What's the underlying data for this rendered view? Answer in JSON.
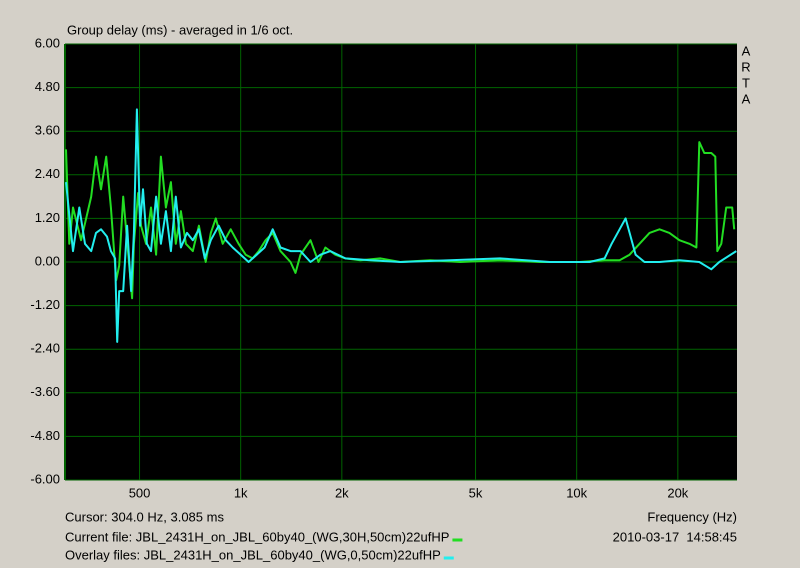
{
  "chart_data": {
    "type": "line",
    "title": "Group delay (ms) - averaged in 1/6 oct.",
    "branding": [
      "A",
      "R",
      "T",
      "A"
    ],
    "xscale": "log",
    "grid": true,
    "grid_color": "#006400",
    "background": "#000000",
    "xlim": [
      300,
      30000
    ],
    "ylim": [
      -6,
      6
    ],
    "xticks": [
      {
        "value": 500,
        "label": "500"
      },
      {
        "value": 1000,
        "label": "1k"
      },
      {
        "value": 2000,
        "label": "2k"
      },
      {
        "value": 5000,
        "label": "5k"
      },
      {
        "value": 10000,
        "label": "10k"
      },
      {
        "value": 20000,
        "label": "20k"
      }
    ],
    "yticks": [
      {
        "value": 6,
        "label": "6.00"
      },
      {
        "value": 4.8,
        "label": "4.80"
      },
      {
        "value": 3.6,
        "label": "3.60"
      },
      {
        "value": 2.4,
        "label": "2.40"
      },
      {
        "value": 1.2,
        "label": "1.20"
      },
      {
        "value": 0,
        "label": "0.00"
      },
      {
        "value": -1.2,
        "label": "-1.20"
      },
      {
        "value": -2.4,
        "label": "-2.40"
      },
      {
        "value": -3.6,
        "label": "-3.60"
      },
      {
        "value": -4.8,
        "label": "-4.80"
      },
      {
        "value": -6,
        "label": "-6.00"
      }
    ],
    "xlabel": "Frequency (Hz)",
    "cursor_readout": "Cursor: 304.0 Hz, 3.085 ms",
    "timestamp": "2010-03-17  14:58:45",
    "series": [
      {
        "name": "Current file: JBL_2431H_on_JBL_60by40_(WG,30H,50cm)22ufHP",
        "color": "#22dd22",
        "x": [
          302,
          309,
          317,
          335,
          359,
          371,
          384,
          398,
          411,
          426,
          435,
          447,
          462,
          475,
          481,
          495,
          505,
          523,
          541,
          560,
          579,
          599,
          620,
          641,
          664,
          687,
          720,
          751,
          787,
          815,
          843,
          884,
          934,
          986,
          1035,
          1085,
          1131,
          1186,
          1245,
          1314,
          1407,
          1456,
          1507,
          1613,
          1704,
          1787,
          1913,
          2049,
          2270,
          2603,
          2985,
          3663,
          4497,
          5909,
          7768,
          10207,
          12110,
          13418,
          14369,
          15381,
          16469,
          17637,
          18880,
          20214,
          21643,
          22707,
          23174,
          23977,
          25155,
          25852,
          26206,
          26936,
          27866,
          29034,
          29430
        ],
        "values": [
          3.1,
          0.5,
          1.5,
          0.6,
          1.8,
          2.9,
          2.0,
          2.9,
          1.5,
          -0.5,
          -0.1,
          1.8,
          0.3,
          -1.0,
          0.5,
          1.9,
          1.0,
          0.5,
          1.5,
          0.2,
          2.9,
          1.5,
          2.2,
          0.5,
          1.4,
          0.5,
          0.3,
          1.0,
          0.0,
          0.8,
          1.2,
          0.5,
          0.9,
          0.5,
          0.2,
          0.1,
          0.3,
          0.6,
          0.8,
          0.3,
          0.0,
          -0.3,
          0.2,
          0.6,
          0.0,
          0.4,
          0.2,
          0.1,
          0.05,
          0.1,
          0.0,
          0.05,
          0.0,
          0.05,
          0.0,
          0.0,
          0.05,
          0.05,
          0.2,
          0.5,
          0.8,
          0.9,
          0.8,
          0.6,
          0.5,
          0.4,
          3.3,
          3.0,
          3.0,
          2.9,
          0.3,
          0.5,
          1.5,
          1.5,
          0.9
        ]
      },
      {
        "name": "Overlay files: JBL_2431H_on_JBL_60by40_(WG,0,50cm)22ufHP",
        "color": "#22eeee",
        "x": [
          302,
          309,
          317,
          331,
          344,
          359,
          371,
          384,
          400,
          411,
          423,
          429,
          435,
          447,
          459,
          472,
          481,
          491,
          502,
          512,
          526,
          541,
          560,
          579,
          599,
          620,
          641,
          664,
          692,
          720,
          751,
          782,
          815,
          860,
          903,
          947,
          1000,
          1056,
          1116,
          1178,
          1245,
          1314,
          1407,
          1507,
          1613,
          1727,
          1849,
          2049,
          2430,
          2985,
          4200,
          5909,
          8318,
          10929,
          12110,
          12702,
          13418,
          13981,
          14369,
          14970,
          15917,
          17637,
          20214,
          23174,
          25155,
          26566,
          29850
        ],
        "values": [
          2.2,
          1.3,
          0.3,
          1.5,
          0.5,
          0.3,
          0.8,
          0.9,
          0.7,
          0.3,
          0.1,
          -2.2,
          -0.8,
          -0.8,
          1.0,
          -0.8,
          0.8,
          4.2,
          1.0,
          2.0,
          0.5,
          0.3,
          1.8,
          0.5,
          1.4,
          0.3,
          1.8,
          0.4,
          0.8,
          0.6,
          0.9,
          0.1,
          0.6,
          1.0,
          0.6,
          0.4,
          0.2,
          0.0,
          0.2,
          0.4,
          0.9,
          0.4,
          0.3,
          0.3,
          0.0,
          0.2,
          0.3,
          0.1,
          0.05,
          0.0,
          0.05,
          0.1,
          0.0,
          0.0,
          0.1,
          0.5,
          0.9,
          1.2,
          0.8,
          0.2,
          0.0,
          0.0,
          0.05,
          0.0,
          -0.2,
          0.0,
          0.3
        ]
      }
    ]
  }
}
